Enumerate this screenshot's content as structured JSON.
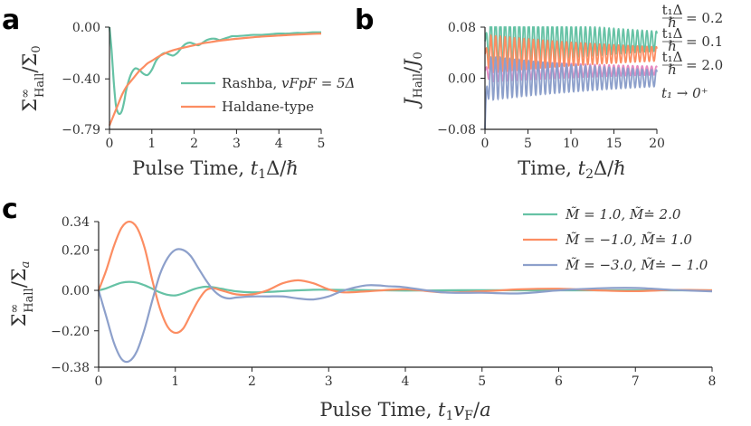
{
  "colors": {
    "green": "#66c2a5",
    "orange": "#fc8d62",
    "blue": "#8da0cb",
    "pink": "#e78ac3",
    "axis": "#222222",
    "text": "#333333"
  },
  "panels": {
    "a": "a",
    "b": "b",
    "c": "c"
  },
  "chart_data": [
    {
      "id": "a",
      "type": "line",
      "xlabel": "Pulse Time, t₁Δ/ℏ",
      "ylabel": "Σ∞ Hall/Σ₀",
      "xlim": [
        0,
        5
      ],
      "ylim": [
        -0.79,
        0.0
      ],
      "xticks": [
        0,
        1,
        2,
        3,
        4,
        5
      ],
      "yticks": [
        0.0,
        -0.4,
        -0.79
      ],
      "yticklabels": [
        "0.00",
        "−0.40",
        "−0.79"
      ],
      "series": [
        {
          "name": "Rashba, v_F p_F = 5Δ",
          "label_main": "Rashba, ",
          "label_math": "vFpF = 5Δ",
          "color": "#66c2a5",
          "x": [
            0,
            0.05,
            0.1,
            0.15,
            0.2,
            0.25,
            0.3,
            0.35,
            0.4,
            0.5,
            0.6,
            0.7,
            0.8,
            0.9,
            1.0,
            1.1,
            1.2,
            1.3,
            1.4,
            1.5,
            1.6,
            1.7,
            1.8,
            1.9,
            2.0,
            2.1,
            2.2,
            2.3,
            2.4,
            2.5,
            2.6,
            2.7,
            2.8,
            2.9,
            3.0,
            3.2,
            3.4,
            3.6,
            3.8,
            4.0,
            4.2,
            4.4,
            4.6,
            4.8,
            5.0
          ],
          "y": [
            0,
            -0.18,
            -0.42,
            -0.6,
            -0.66,
            -0.67,
            -0.64,
            -0.57,
            -0.48,
            -0.37,
            -0.32,
            -0.33,
            -0.36,
            -0.37,
            -0.33,
            -0.26,
            -0.22,
            -0.2,
            -0.21,
            -0.22,
            -0.2,
            -0.16,
            -0.13,
            -0.12,
            -0.13,
            -0.14,
            -0.12,
            -0.1,
            -0.09,
            -0.09,
            -0.1,
            -0.09,
            -0.08,
            -0.07,
            -0.07,
            -0.065,
            -0.06,
            -0.06,
            -0.055,
            -0.05,
            -0.05,
            -0.045,
            -0.045,
            -0.04,
            -0.04
          ]
        },
        {
          "name": "Haldane-type",
          "label_main": "Haldane-type",
          "label_math": "",
          "color": "#fc8d62",
          "x": [
            0,
            0.1,
            0.2,
            0.3,
            0.4,
            0.5,
            0.6,
            0.7,
            0.8,
            0.9,
            1.0,
            1.2,
            1.4,
            1.6,
            1.8,
            2.0,
            2.2,
            2.4,
            2.6,
            2.8,
            3.0,
            3.2,
            3.4,
            3.6,
            3.8,
            4.0,
            4.2,
            4.4,
            4.6,
            4.8,
            5.0
          ],
          "y": [
            -0.76,
            -0.68,
            -0.6,
            -0.52,
            -0.46,
            -0.42,
            -0.38,
            -0.34,
            -0.31,
            -0.28,
            -0.26,
            -0.22,
            -0.19,
            -0.17,
            -0.155,
            -0.14,
            -0.125,
            -0.115,
            -0.105,
            -0.097,
            -0.09,
            -0.084,
            -0.078,
            -0.073,
            -0.069,
            -0.065,
            -0.061,
            -0.058,
            -0.055,
            -0.052,
            -0.05
          ]
        }
      ]
    },
    {
      "id": "b",
      "type": "line",
      "xlabel": "Time, t₂Δ/ℏ",
      "ylabel": "J Hall/J₀",
      "xlim": [
        0,
        20
      ],
      "ylim": [
        -0.08,
        0.08
      ],
      "xticks": [
        0,
        5,
        10,
        15,
        20
      ],
      "yticks": [
        0.08,
        0.0,
        -0.08
      ],
      "yticklabels": [
        "0.08",
        "0.00",
        "−0.08"
      ],
      "series": [
        {
          "name": "t1Δ/ℏ = 0.2",
          "label_main": "",
          "label_math": "= 0.2",
          "color": "#66c2a5",
          "mean": 0.058,
          "amp": 0.042,
          "decay": 0.05,
          "rise": 0.0,
          "period": 0.55
        },
        {
          "name": "t1Δ/ℏ = 0.1",
          "label_main": "",
          "label_math": "= 0.1",
          "color": "#fc8d62",
          "mean": 0.038,
          "amp": 0.03,
          "decay": 0.05,
          "rise": 0.0,
          "period": 0.55
        },
        {
          "name": "t1Δ/ℏ = 2.0",
          "label_main": "",
          "label_math": "= 2.0",
          "color": "#e78ac3",
          "mean": 0.012,
          "amp": 0.018,
          "decay": 0.05,
          "rise": 0.0,
          "period": 0.55
        },
        {
          "name": "t1 → 0+",
          "label_main": "",
          "label_math": "t₁ → 0⁺",
          "color": "#8da0cb",
          "mean": 0.0,
          "amp": 0.035,
          "decay": 0.05,
          "rise": -0.08,
          "period": 0.55
        }
      ]
    },
    {
      "id": "c",
      "type": "line",
      "xlabel": "Pulse Time, t₁v_F/a",
      "ylabel": "Σ∞ Hall/Σ_a",
      "xlim": [
        0,
        8
      ],
      "ylim": [
        -0.38,
        0.34
      ],
      "xticks": [
        0,
        1,
        2,
        3,
        4,
        5,
        6,
        7,
        8
      ],
      "yticks": [
        0.34,
        0.2,
        0.0,
        -0.2,
        -0.38
      ],
      "yticklabels": [
        "0.34",
        "0.20",
        "0.00",
        "−0.20",
        "−0.38"
      ],
      "series": [
        {
          "name": "M̃ = 1.0, M̃ = 2.0",
          "label_main": "",
          "label_math": "M̃ = 1.0, M̃≐ 2.0",
          "color": "#66c2a5",
          "x": [
            0,
            0.1,
            0.2,
            0.3,
            0.4,
            0.5,
            0.6,
            0.7,
            0.8,
            0.9,
            1.0,
            1.1,
            1.2,
            1.3,
            1.4,
            1.5,
            1.6,
            1.8,
            2.0,
            2.2,
            2.4,
            2.6,
            2.8,
            3.0,
            3.5,
            4.0,
            4.5,
            5.0,
            5.5,
            6.0,
            6.5,
            7.0,
            7.5,
            8.0
          ],
          "y": [
            0,
            0.01,
            0.025,
            0.038,
            0.042,
            0.038,
            0.025,
            0.008,
            -0.01,
            -0.022,
            -0.025,
            -0.015,
            0.0,
            0.012,
            0.018,
            0.015,
            0.008,
            -0.005,
            -0.01,
            -0.008,
            -0.004,
            0.0,
            0.003,
            0.003,
            0.001,
            -0.001,
            0.0,
            0.001,
            0.0,
            0.0,
            0.0,
            0.0,
            0.0,
            0.0
          ]
        },
        {
          "name": "M̃ = -1.0, M̃ = 1.0",
          "label_main": "",
          "label_math": "M̃ = −1.0, M̃≐ 1.0",
          "color": "#fc8d62",
          "x": [
            0,
            0.1,
            0.2,
            0.3,
            0.4,
            0.5,
            0.6,
            0.7,
            0.8,
            0.9,
            1.0,
            1.1,
            1.2,
            1.3,
            1.4,
            1.5,
            1.6,
            1.8,
            2.0,
            2.2,
            2.4,
            2.6,
            2.8,
            3.0,
            3.2,
            3.5,
            4.0,
            4.5,
            5.0,
            5.5,
            6.0,
            6.5,
            7.0,
            7.5,
            8.0
          ],
          "y": [
            0,
            0.1,
            0.22,
            0.31,
            0.34,
            0.31,
            0.21,
            0.05,
            -0.09,
            -0.18,
            -0.21,
            -0.19,
            -0.12,
            -0.05,
            0.0,
            0.01,
            0.0,
            -0.02,
            -0.02,
            0.0,
            0.035,
            0.05,
            0.035,
            0.005,
            -0.01,
            -0.005,
            0.005,
            -0.01,
            -0.005,
            0.005,
            0.008,
            0.0,
            -0.004,
            0.002,
            0.0
          ]
        },
        {
          "name": "M̃ = -3.0, M̃ = -1.0",
          "label_main": "",
          "label_math": "M̃ = −3.0, M̃≐ − 1.0",
          "color": "#8da0cb",
          "x": [
            0,
            0.1,
            0.2,
            0.3,
            0.4,
            0.5,
            0.6,
            0.7,
            0.8,
            0.9,
            1.0,
            1.1,
            1.2,
            1.3,
            1.4,
            1.5,
            1.6,
            1.7,
            1.8,
            2.0,
            2.2,
            2.4,
            2.6,
            2.8,
            3.0,
            3.2,
            3.5,
            3.8,
            4.0,
            4.5,
            5.0,
            5.5,
            6.0,
            6.5,
            7.0,
            7.5,
            8.0
          ],
          "y": [
            0,
            -0.13,
            -0.26,
            -0.34,
            -0.35,
            -0.3,
            -0.19,
            -0.05,
            0.08,
            0.16,
            0.2,
            0.2,
            0.17,
            0.11,
            0.05,
            0.0,
            -0.03,
            -0.04,
            -0.035,
            -0.03,
            -0.03,
            -0.03,
            -0.04,
            -0.045,
            -0.03,
            0.0,
            0.025,
            0.02,
            0.015,
            -0.01,
            -0.012,
            -0.015,
            0.0,
            0.01,
            0.012,
            0.002,
            -0.005
          ]
        }
      ]
    }
  ],
  "legend_b": {
    "frac_num": "t₁Δ",
    "frac_den": "ℏ"
  }
}
